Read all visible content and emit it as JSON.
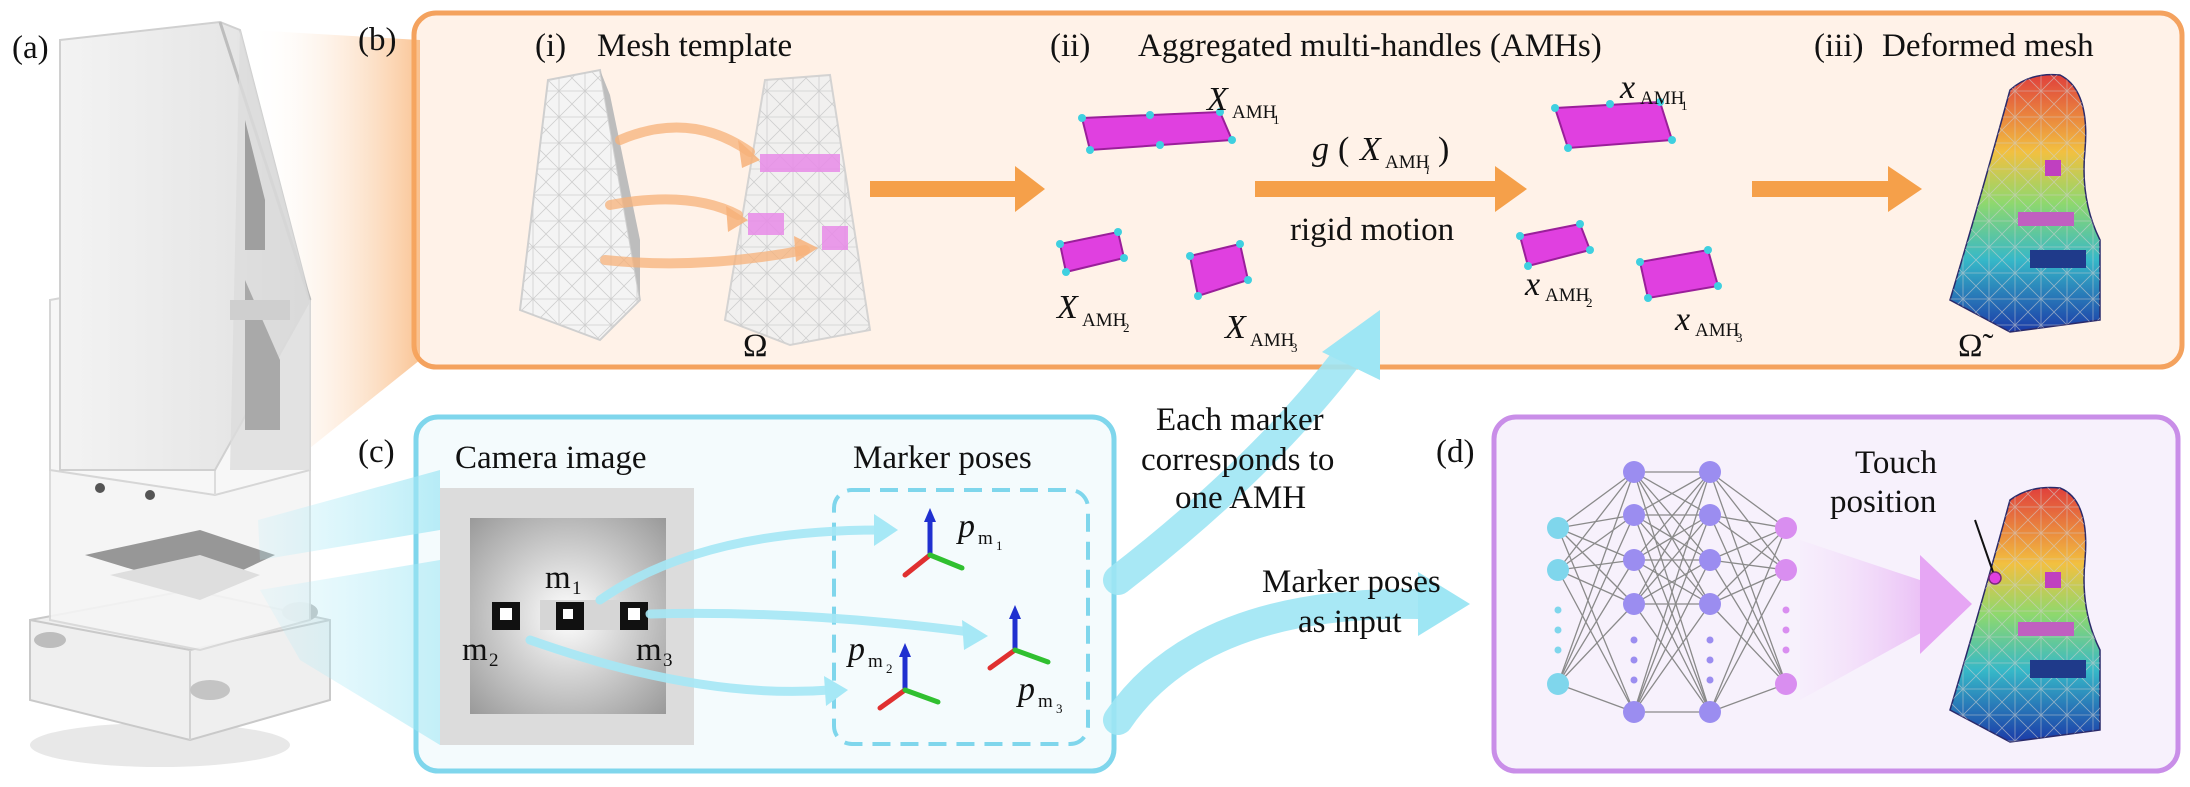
{
  "panels": {
    "a": {
      "tag": "(a)"
    },
    "b": {
      "tag": "(b)",
      "sections": [
        {
          "tag": "(i)",
          "title": "Mesh template",
          "domain_symbol": "Ω"
        },
        {
          "tag": "(ii)",
          "title": "Aggregated multi-handles (AMHs)"
        },
        {
          "tag": "(iii)",
          "title": "Deformed mesh",
          "domain_symbol": "Ω̃"
        }
      ],
      "transform": {
        "fn": "g",
        "arg": "X",
        "arg_sub": "AMH",
        "arg_subsub": "i",
        "caption": "rigid motion"
      },
      "source_handles": [
        {
          "sym": "X",
          "sub": "AMH",
          "idx": "1"
        },
        {
          "sym": "X",
          "sub": "AMH",
          "idx": "2"
        },
        {
          "sym": "X",
          "sub": "AMH",
          "idx": "3"
        }
      ],
      "target_handles": [
        {
          "sym": "x",
          "sub": "AMH",
          "idx": "1"
        },
        {
          "sym": "x",
          "sub": "AMH",
          "idx": "2"
        },
        {
          "sym": "x",
          "sub": "AMH",
          "idx": "3"
        }
      ]
    },
    "c": {
      "tag": "(c)",
      "camera_title": "Camera image",
      "marker_title": "Marker poses",
      "markers": [
        {
          "sym": "m",
          "idx": "1"
        },
        {
          "sym": "m",
          "idx": "2"
        },
        {
          "sym": "m",
          "idx": "3"
        }
      ],
      "poses": [
        {
          "sym": "p",
          "sub": "m",
          "idx": "1"
        },
        {
          "sym": "p",
          "sub": "m",
          "idx": "2"
        },
        {
          "sym": "p",
          "sub": "m",
          "idx": "3"
        }
      ]
    },
    "d": {
      "tag": "(d)",
      "touch_line1": "Touch",
      "touch_line2": "position"
    }
  },
  "connectors": {
    "correspond_lines": [
      "Each marker",
      "corresponds to",
      "one AMH"
    ],
    "input_lines": [
      "Marker poses",
      "as input"
    ]
  },
  "colors": {
    "b_border": "#f4a25e",
    "b_fill": "#fff2e8",
    "c_border": "#7fd6ec",
    "c_fill": "#f4fbfd",
    "d_border": "#c98ee8",
    "d_fill": "#f7f1fc",
    "orange_arrow": "#f5a04a",
    "cyan_arrow": "#9ee6f4",
    "handle_magenta": "#e040e0",
    "handle_dot": "#3fd0e0",
    "nn_input": "#7fd6ec",
    "nn_hidden": "#9b8df0",
    "nn_output": "#d98ef0"
  }
}
